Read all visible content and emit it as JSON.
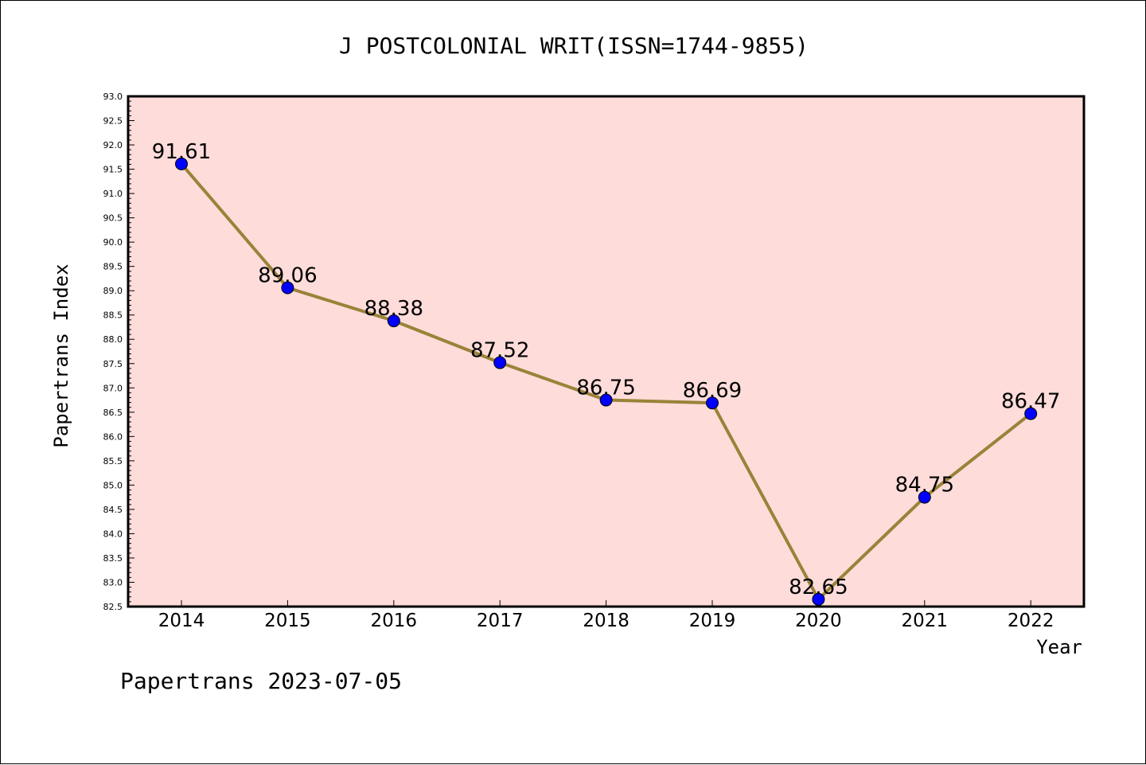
{
  "chart_data": {
    "type": "line",
    "title": "J POSTCOLONIAL WRIT(ISSN=1744-9855)",
    "xlabel": "Year",
    "ylabel": "Papertrans Index",
    "categories": [
      "2014",
      "2015",
      "2016",
      "2017",
      "2018",
      "2019",
      "2020",
      "2021",
      "2022"
    ],
    "values": [
      91.61,
      89.06,
      88.38,
      87.52,
      86.75,
      86.69,
      82.65,
      84.75,
      86.47
    ],
    "data_labels": [
      "91.61",
      "89.06",
      "88.38",
      "87.52",
      "86.75",
      "86.69",
      "82.65",
      "84.75",
      "86.47"
    ],
    "ylim": [
      82.5,
      93.0
    ],
    "ytick_step": 0.5,
    "grid": false,
    "legend": "none",
    "colors": {
      "plot_background": "#fddcda",
      "line": "#9a8238",
      "marker": "#0000ff",
      "frame": "#000000"
    }
  },
  "footer": "Papertrans 2023-07-05"
}
